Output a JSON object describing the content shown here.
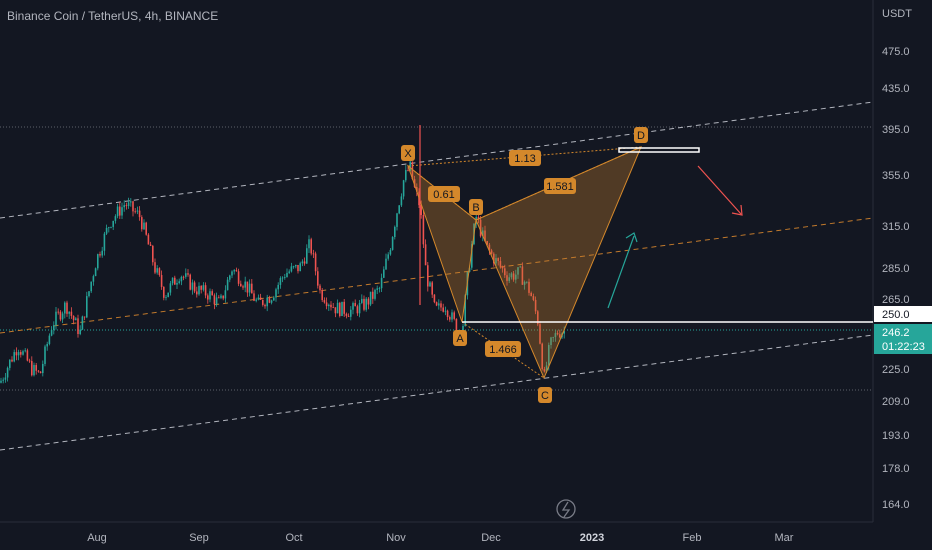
{
  "header": {
    "title": "Binance Coin / TetherUS, 4h, BINANCE",
    "currency": "USDT"
  },
  "chart_data": {
    "type": "candlestick",
    "price_axis": {
      "ticks": [
        "475.0",
        "435.0",
        "395.0",
        "355.0",
        "315.0",
        "285.0",
        "265.0",
        "225.0",
        "209.0",
        "193.0",
        "178.0",
        "164.0"
      ],
      "scale": "log"
    },
    "time_axis": {
      "ticks": [
        "Aug",
        "Sep",
        "Oct",
        "Nov",
        "Dec",
        "2023",
        "Feb",
        "Mar"
      ]
    },
    "markers": {
      "alert_level": "250.0",
      "last_price": "246.2",
      "countdown": "01:22:23"
    },
    "harmonic_pattern": {
      "points": [
        {
          "label": "X",
          "price": 362
        },
        {
          "label": "A",
          "price": 244
        },
        {
          "label": "B",
          "price": 322
        },
        {
          "label": "C",
          "price": 219
        },
        {
          "label": "D",
          "price": 392
        }
      ],
      "ratios": [
        "0.61",
        "1.13",
        "1.581",
        "1.466"
      ]
    },
    "colors": {
      "up": "#26a69a",
      "down": "#ef5350",
      "pattern_fill": "#c27a2c",
      "pattern_label": "#d4882b",
      "channel": "#b2b5be",
      "midline": "#c27a2c",
      "arrow_up": "#26a69a",
      "arrow_down": "#ef5350"
    }
  },
  "icons": {
    "logo": "lightning-icon"
  }
}
